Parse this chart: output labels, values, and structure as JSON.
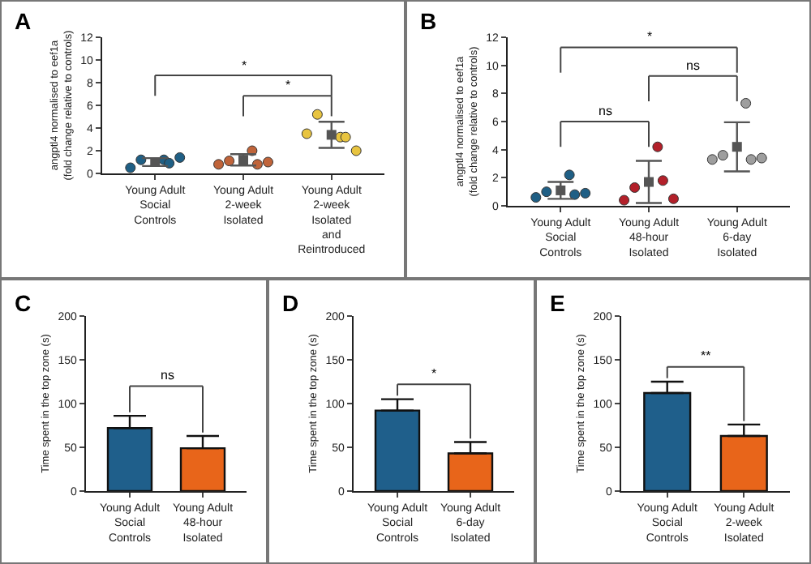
{
  "chart_data": [
    {
      "type": "scatter",
      "title": "A",
      "ylabel": "angptl4 normalised to eef1a\n(fold change relative to controls)",
      "categories": [
        "Young Adult\nSocial\nControls",
        "Young Adult\n2-week\nIsolated",
        "Young Adult\n2-week\nIsolated\nand\nReintroduced"
      ],
      "ylim": [
        0,
        12
      ],
      "yticks": [
        0,
        2,
        4,
        6,
        8,
        10,
        12
      ],
      "grid": false,
      "marker": "circle",
      "series": [
        {
          "color": "#1f5f85",
          "x": [
            "Young Adult\nSocial\nControls",
            "Young Adult\nSocial\nControls",
            "Young Adult\nSocial\nControls",
            "Young Adult\nSocial\nControls",
            "Young Adult\nSocial\nControls"
          ],
          "values": [
            0.5,
            1.2,
            1.2,
            0.9,
            1.4
          ]
        },
        {
          "color": "#c0643a",
          "x": [
            "Young Adult\n2-week\nIsolated",
            "Young Adult\n2-week\nIsolated",
            "Young Adult\n2-week\nIsolated",
            "Young Adult\n2-week\nIsolated",
            "Young Adult\n2-week\nIsolated"
          ],
          "values": [
            0.8,
            1.1,
            2.0,
            0.8,
            1.0
          ]
        },
        {
          "color": "#e8c440",
          "x": [
            "Young Adult\n2-week\nIsolated\nand\nReintroduced",
            "Young Adult\n2-week\nIsolated\nand\nReintroduced",
            "Young Adult\n2-week\nIsolated\nand\nReintroduced",
            "Young Adult\n2-week\nIsolated\nand\nReintroduced",
            "Young Adult\n2-week\nIsolated\nand\nReintroduced"
          ],
          "values": [
            3.5,
            5.2,
            3.2,
            3.2,
            2.0
          ]
        },
        {
          "color": "#555555",
          "marker": "square",
          "values": [
            1.0,
            1.2,
            3.4
          ],
          "errors": [
            0.35,
            0.5,
            1.15
          ]
        }
      ],
      "annotations": [
        "*",
        "*"
      ]
    },
    {
      "type": "scatter",
      "title": "B",
      "ylabel": "angptl4 normalised to eef1a\n(fold change relative to controls)",
      "categories": [
        "Young Adult\nSocial\nControls",
        "Young Adult\n48-hour\nIsolated",
        "Young Adult\n6-day\nIsolated"
      ],
      "ylim": [
        0,
        12
      ],
      "yticks": [
        0,
        2,
        4,
        6,
        8,
        10,
        12
      ],
      "grid": false,
      "marker": "circle",
      "series": [
        {
          "color": "#1f5f85",
          "x": [
            "Young Adult\nSocial\nControls",
            "Young Adult\nSocial\nControls",
            "Young Adult\nSocial\nControls",
            "Young Adult\nSocial\nControls",
            "Young Adult\nSocial\nControls"
          ],
          "values": [
            0.6,
            1.0,
            2.2,
            0.8,
            0.9
          ]
        },
        {
          "color": "#b3202a",
          "x": [
            "Young Adult\n48-hour\nIsolated",
            "Young Adult\n48-hour\nIsolated",
            "Young Adult\n48-hour\nIsolated",
            "Young Adult\n48-hour\nIsolated",
            "Young Adult\n48-hour\nIsolated"
          ],
          "values": [
            0.4,
            1.3,
            4.2,
            1.8,
            0.5
          ]
        },
        {
          "color": "#9e9e9e",
          "x": [
            "Young Adult\n6-day\nIsolated",
            "Young Adult\n6-day\nIsolated",
            "Young Adult\n6-day\nIsolated",
            "Young Adult\n6-day\nIsolated",
            "Young Adult\n6-day\nIsolated"
          ],
          "values": [
            3.3,
            3.6,
            7.3,
            3.3,
            3.4
          ]
        },
        {
          "color": "#555555",
          "marker": "square",
          "values": [
            1.1,
            1.7,
            4.2
          ],
          "errors": [
            0.6,
            1.5,
            1.75
          ]
        }
      ],
      "annotations": [
        "ns",
        "ns",
        "*"
      ]
    },
    {
      "type": "bar",
      "title": "C",
      "ylabel": "Time spent in the top zone (s)",
      "categories": [
        "Young Adult\nSocial\nControls",
        "Young Adult\n48-hour\nIsolated"
      ],
      "values": [
        72,
        49
      ],
      "errors": [
        14,
        14
      ],
      "colors": [
        "#1f5f8b",
        "#e8651a"
      ],
      "ylim": [
        0,
        200
      ],
      "yticks": [
        0,
        50,
        100,
        150,
        200
      ],
      "grid": false,
      "annotations": [
        "ns"
      ]
    },
    {
      "type": "bar",
      "title": "D",
      "ylabel": "Time spent in the top zone (s)",
      "categories": [
        "Young Adult\nSocial\nControls",
        "Young Adult\n6-day\nIsolated"
      ],
      "values": [
        92,
        43
      ],
      "errors": [
        13,
        13
      ],
      "colors": [
        "#1f5f8b",
        "#e8651a"
      ],
      "ylim": [
        0,
        200
      ],
      "yticks": [
        0,
        50,
        100,
        150,
        200
      ],
      "grid": false,
      "annotations": [
        "*"
      ]
    },
    {
      "type": "bar",
      "title": "E",
      "ylabel": "Time spent in the top zone (s)",
      "categories": [
        "Young Adult\nSocial\nControls",
        "Young Adult\n2-week\nIsolated"
      ],
      "values": [
        112,
        63
      ],
      "errors": [
        13,
        13
      ],
      "colors": [
        "#1f5f8b",
        "#e8651a"
      ],
      "ylim": [
        0,
        200
      ],
      "yticks": [
        0,
        50,
        100,
        150,
        200
      ],
      "grid": false,
      "annotations": [
        "**"
      ]
    }
  ]
}
